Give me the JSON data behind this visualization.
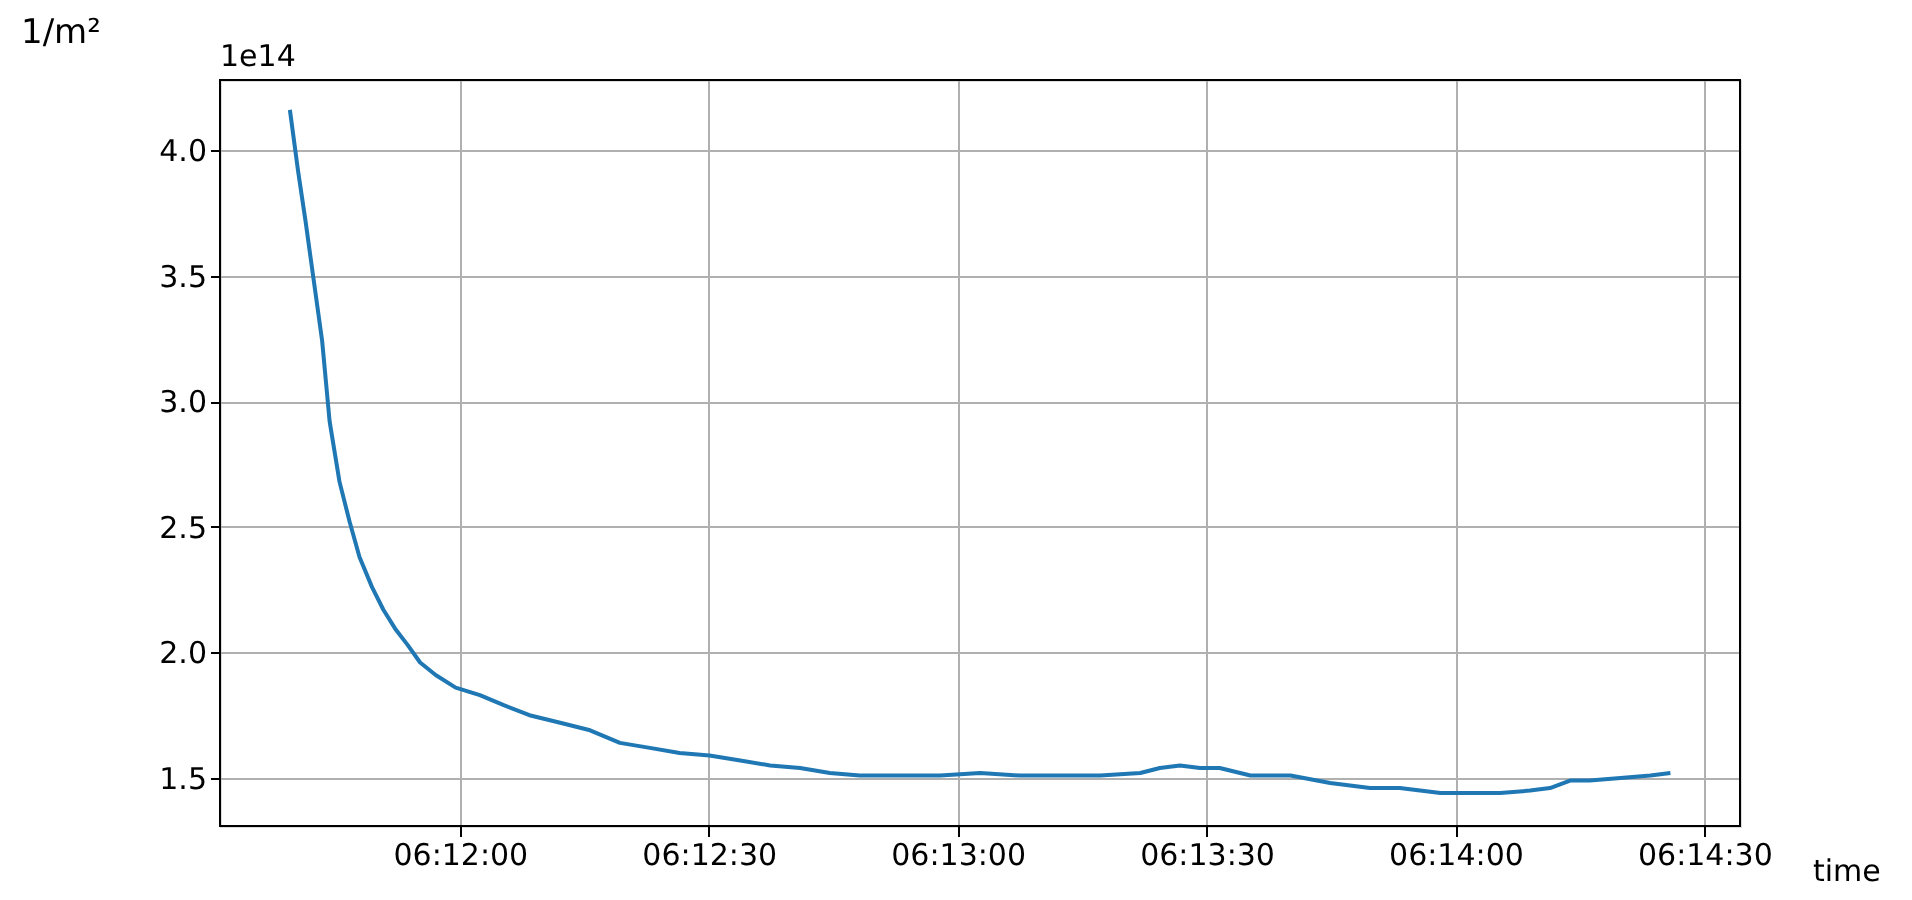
{
  "chart_data": {
    "type": "line",
    "xlabel": "time",
    "ylabel": "1/m²",
    "annotations": [
      "1e14"
    ],
    "grid": true,
    "xlim": [
      6.19197,
      6.24286
    ],
    "ylim": [
      1.309,
      4.279
    ],
    "xticks": [
      {
        "value": 6.2,
        "label": "06:12:00"
      },
      {
        "value": 6.208333,
        "label": "06:12:30"
      },
      {
        "value": 6.216667,
        "label": "06:13:00"
      },
      {
        "value": 6.225,
        "label": "06:13:30"
      },
      {
        "value": 6.233333,
        "label": "06:14:00"
      },
      {
        "value": 6.241667,
        "label": "06:14:30"
      }
    ],
    "yticks": [
      1.5,
      {
        "value": 2,
        "label": "2.0"
      },
      2.5,
      {
        "value": 3,
        "label": "3.0"
      },
      3.5,
      {
        "value": 4,
        "label": "4.0"
      }
    ],
    "series": [
      {
        "color": "#1f77b4",
        "x": [
          6.19431,
          6.19458,
          6.19483,
          6.19511,
          6.19539,
          6.19564,
          6.19597,
          6.19631,
          6.19664,
          6.19706,
          6.19744,
          6.19786,
          6.19825,
          6.19867,
          6.19919,
          6.19986,
          6.20067,
          6.20147,
          6.20233,
          6.20336,
          6.20436,
          6.20536,
          6.20636,
          6.20736,
          6.20836,
          6.20939,
          6.21039,
          6.21139,
          6.21239,
          6.21339,
          6.21475,
          6.21608,
          6.21742,
          6.21875,
          6.22008,
          6.22144,
          6.22278,
          6.22344,
          6.22411,
          6.22478,
          6.22544,
          6.22647,
          6.22781,
          6.22914,
          6.23047,
          6.23147,
          6.23283,
          6.23383,
          6.23483,
          6.23583,
          6.2365,
          6.23717,
          6.23783,
          6.23886,
          6.23986,
          6.24053
        ],
        "values": [
          4.16,
          3.92,
          3.72,
          3.48,
          3.24,
          2.92,
          2.68,
          2.52,
          2.38,
          2.26,
          2.17,
          2.09,
          2.03,
          1.96,
          1.91,
          1.86,
          1.83,
          1.79,
          1.75,
          1.72,
          1.69,
          1.64,
          1.62,
          1.6,
          1.59,
          1.57,
          1.55,
          1.54,
          1.52,
          1.51,
          1.51,
          1.51,
          1.52,
          1.51,
          1.51,
          1.51,
          1.52,
          1.54,
          1.55,
          1.54,
          1.54,
          1.51,
          1.51,
          1.48,
          1.46,
          1.46,
          1.44,
          1.44,
          1.44,
          1.45,
          1.46,
          1.49,
          1.49,
          1.5,
          1.51,
          1.52
        ]
      }
    ]
  }
}
